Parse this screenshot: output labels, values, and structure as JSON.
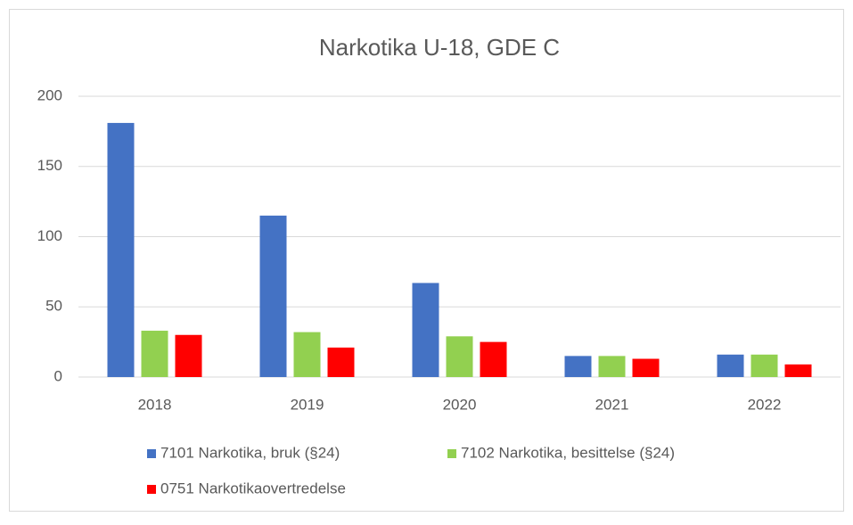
{
  "chart_data": {
    "type": "bar",
    "title": "Narkotika U-18, GDE C",
    "categories": [
      "2018",
      "2019",
      "2020",
      "2021",
      "2022"
    ],
    "series": [
      {
        "name": "7101 Narkotika, bruk (§24)",
        "color": "#4472c4",
        "values": [
          181,
          115,
          67,
          15,
          16
        ]
      },
      {
        "name": "7102 Narkotika, besittelse (§24)",
        "color": "#92d050",
        "values": [
          33,
          32,
          29,
          15,
          16
        ]
      },
      {
        "name": "0751 Narkotikaovertredelse",
        "color": "#ff0000",
        "values": [
          30,
          21,
          25,
          13,
          9
        ]
      }
    ],
    "ylim": [
      0,
      200
    ],
    "yticks": [
      0,
      50,
      100,
      150,
      200
    ],
    "grid": true
  }
}
